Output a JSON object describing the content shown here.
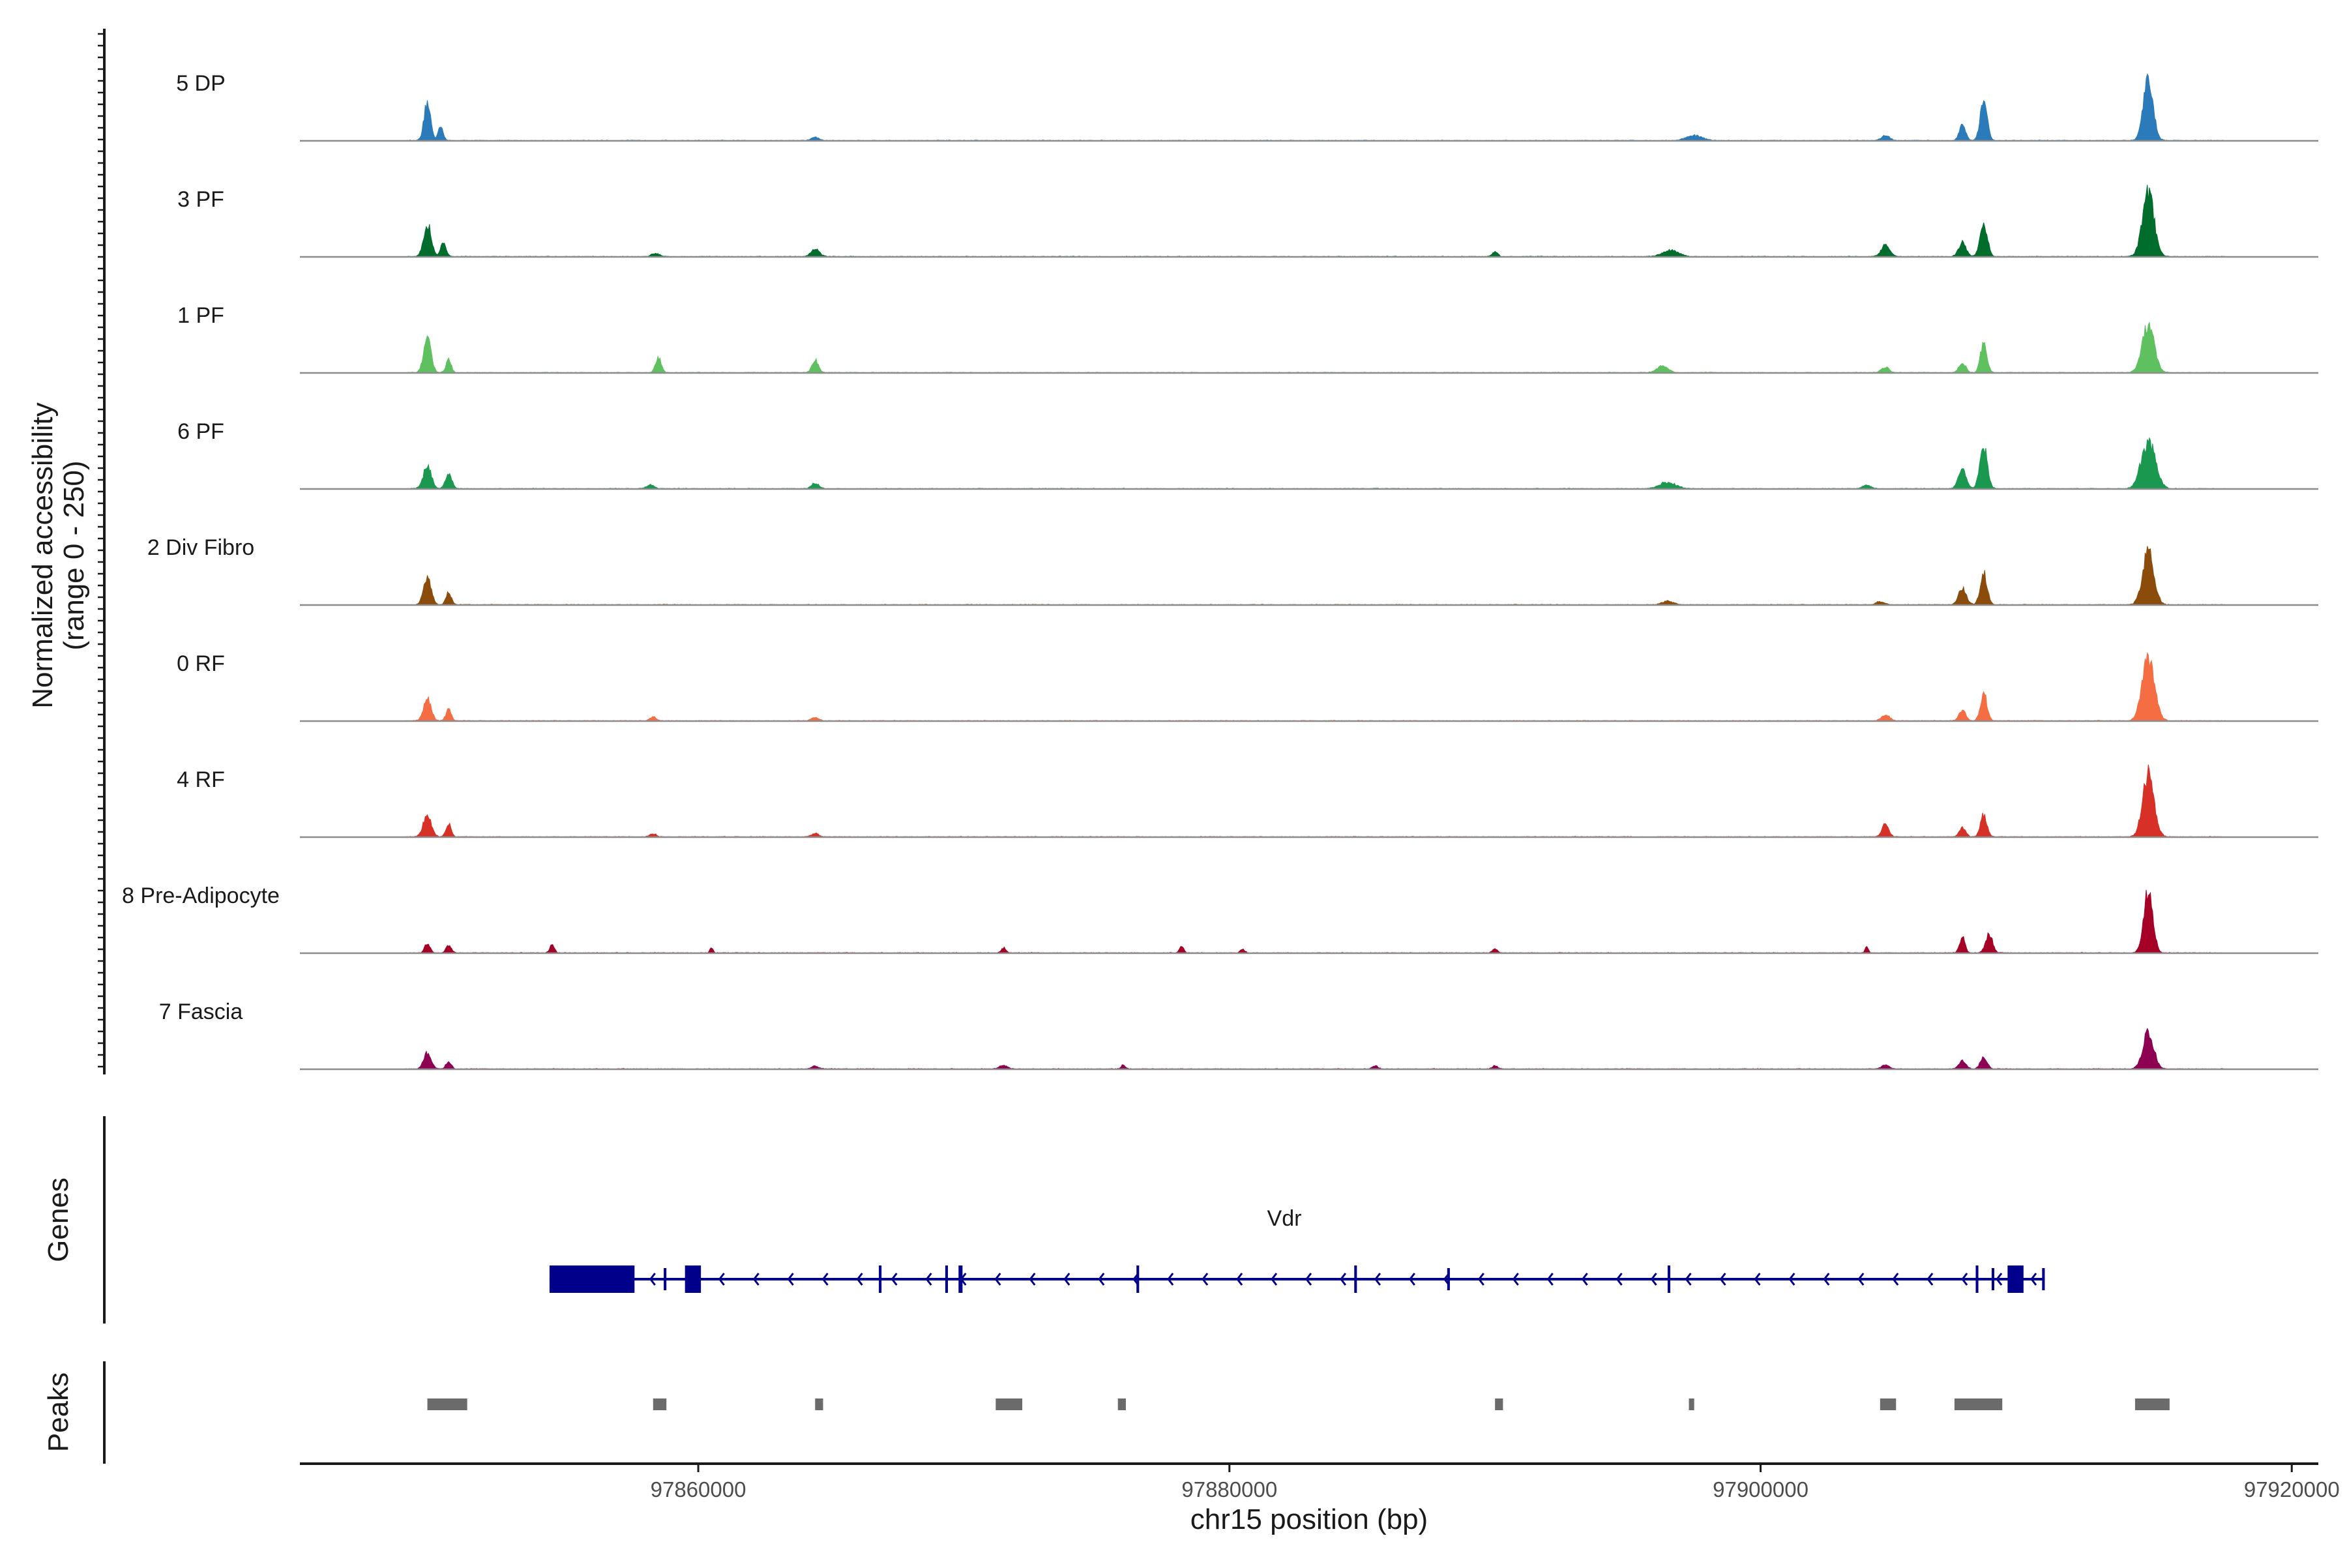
{
  "chart_data": {
    "type": "coverage",
    "ylabel_line1": "Normalized accessibility",
    "ylabel_line2": "(range 0 - 250)",
    "xlabel": "chr15 position (bp)",
    "xlim": [
      97845000,
      97921000
    ],
    "x_ticks": [
      97860000,
      97880000,
      97900000,
      97920000
    ],
    "x_tick_labels": [
      "97860000",
      "97880000",
      "97900000",
      "97920000"
    ],
    "y_range": [
      0,
      250
    ],
    "tracks": [
      {
        "name": "5 DP",
        "color": "#2b7bba",
        "peaks": [
          [
            97849800,
            0.62,
            120
          ],
          [
            97850300,
            0.25,
            90
          ],
          [
            97864400,
            0.05,
            150
          ],
          [
            97897500,
            0.08,
            300
          ],
          [
            97904700,
            0.08,
            150
          ],
          [
            97907600,
            0.25,
            120
          ],
          [
            97908400,
            0.62,
            130
          ],
          [
            97914600,
            1.0,
            180
          ]
        ]
      },
      {
        "name": "3 PF",
        "color": "#006d2c",
        "peaks": [
          [
            97849800,
            0.52,
            140
          ],
          [
            97850400,
            0.22,
            100
          ],
          [
            97858400,
            0.05,
            150
          ],
          [
            97864400,
            0.13,
            150
          ],
          [
            97890000,
            0.08,
            100
          ],
          [
            97896600,
            0.1,
            300
          ],
          [
            97904700,
            0.18,
            160
          ],
          [
            97907600,
            0.22,
            140
          ],
          [
            97908400,
            0.52,
            140
          ],
          [
            97914600,
            1.0,
            220
          ]
        ]
      },
      {
        "name": "1 PF",
        "color": "#5ec05e",
        "peaks": [
          [
            97849800,
            0.52,
            140
          ],
          [
            97850600,
            0.2,
            100
          ],
          [
            97858500,
            0.24,
            110
          ],
          [
            97864400,
            0.2,
            120
          ],
          [
            97896300,
            0.1,
            200
          ],
          [
            97904700,
            0.08,
            150
          ],
          [
            97907600,
            0.15,
            130
          ],
          [
            97908400,
            0.48,
            120
          ],
          [
            97914600,
            0.78,
            220
          ]
        ]
      },
      {
        "name": "6 PF",
        "color": "#1a9850",
        "peaks": [
          [
            97849800,
            0.35,
            150
          ],
          [
            97850600,
            0.25,
            120
          ],
          [
            97858200,
            0.06,
            150
          ],
          [
            97864400,
            0.08,
            150
          ],
          [
            97896500,
            0.1,
            300
          ],
          [
            97904000,
            0.06,
            150
          ],
          [
            97907600,
            0.3,
            150
          ],
          [
            97908400,
            0.66,
            140
          ],
          [
            97914600,
            0.75,
            260
          ]
        ]
      },
      {
        "name": "2 Div Fibro",
        "color": "#8b4c0b",
        "peaks": [
          [
            97849800,
            0.45,
            140
          ],
          [
            97850600,
            0.2,
            100
          ],
          [
            97896500,
            0.06,
            200
          ],
          [
            97904500,
            0.05,
            150
          ],
          [
            97907600,
            0.25,
            150
          ],
          [
            97908400,
            0.5,
            130
          ],
          [
            97914600,
            0.85,
            210
          ]
        ]
      },
      {
        "name": "0 RF",
        "color": "#f46d43",
        "peaks": [
          [
            97849800,
            0.35,
            140
          ],
          [
            97850600,
            0.18,
            100
          ],
          [
            97858300,
            0.06,
            120
          ],
          [
            97864400,
            0.05,
            150
          ],
          [
            97904700,
            0.1,
            150
          ],
          [
            97907600,
            0.18,
            120
          ],
          [
            97908400,
            0.45,
            120
          ],
          [
            97914600,
            1.0,
            230
          ]
        ]
      },
      {
        "name": "4 RF",
        "color": "#d73027",
        "peaks": [
          [
            97849800,
            0.35,
            150
          ],
          [
            97850600,
            0.2,
            100
          ],
          [
            97858300,
            0.05,
            120
          ],
          [
            97864400,
            0.05,
            150
          ],
          [
            97904700,
            0.2,
            130
          ],
          [
            97907600,
            0.15,
            120
          ],
          [
            97908400,
            0.35,
            120
          ],
          [
            97914600,
            1.0,
            210
          ]
        ]
      },
      {
        "name": "8 Pre-Adipocyte",
        "color": "#a50026",
        "peaks": [
          [
            97849800,
            0.15,
            100
          ],
          [
            97850600,
            0.12,
            100
          ],
          [
            97854500,
            0.15,
            80
          ],
          [
            97860500,
            0.08,
            60
          ],
          [
            97871500,
            0.08,
            80
          ],
          [
            97878200,
            0.1,
            80
          ],
          [
            97880500,
            0.06,
            80
          ],
          [
            97890000,
            0.06,
            100
          ],
          [
            97904000,
            0.1,
            60
          ],
          [
            97907600,
            0.25,
            100
          ],
          [
            97908600,
            0.3,
            130
          ],
          [
            97914600,
            1.0,
            170
          ]
        ]
      },
      {
        "name": "7 Fascia",
        "color": "#8e0152",
        "peaks": [
          [
            97849800,
            0.25,
            140
          ],
          [
            97850600,
            0.12,
            100
          ],
          [
            97864400,
            0.04,
            150
          ],
          [
            97871500,
            0.06,
            150
          ],
          [
            97876000,
            0.06,
            80
          ],
          [
            97885500,
            0.05,
            100
          ],
          [
            97890000,
            0.05,
            100
          ],
          [
            97904700,
            0.06,
            150
          ],
          [
            97907600,
            0.12,
            140
          ],
          [
            97908400,
            0.2,
            120
          ],
          [
            97914600,
            0.58,
            200
          ]
        ]
      }
    ],
    "gene": {
      "name": "Vdr",
      "start": 97854400,
      "end": 97910700,
      "strand": "-",
      "exons": [
        [
          97854400,
          97857600,
          "utr"
        ],
        [
          97858700,
          97858800,
          "thin"
        ],
        [
          97859500,
          97860100,
          "cds"
        ],
        [
          97866800,
          97866900,
          "cds"
        ],
        [
          97869300,
          97869400,
          "cds"
        ],
        [
          97869800,
          97869950,
          "cds"
        ],
        [
          97876500,
          97876600,
          "cds"
        ],
        [
          97884700,
          97884800,
          "cds"
        ],
        [
          97888200,
          97888300,
          "thin"
        ],
        [
          97896500,
          97896600,
          "cds"
        ],
        [
          97908100,
          97908200,
          "cds"
        ],
        [
          97908700,
          97908800,
          "thin"
        ],
        [
          97909300,
          97909900,
          "cds"
        ],
        [
          97910600,
          97910700,
          "thin"
        ]
      ]
    },
    "peaks_track": [
      [
        97849800,
        97851300
      ],
      [
        97858300,
        97858800
      ],
      [
        97864400,
        97864700
      ],
      [
        97871200,
        97872200
      ],
      [
        97875800,
        97876100
      ],
      [
        97890000,
        97890300
      ],
      [
        97897300,
        97897500
      ],
      [
        97904500,
        97905100
      ],
      [
        97907300,
        97909100
      ],
      [
        97914100,
        97915400
      ]
    ],
    "panel_titles": {
      "genes": "Genes",
      "peaks": "Peaks"
    }
  }
}
